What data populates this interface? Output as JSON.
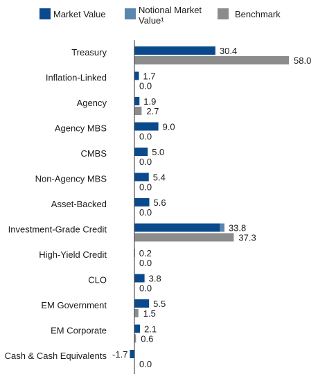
{
  "chart_data": {
    "type": "bar",
    "orientation": "horizontal",
    "categories": [
      "Treasury",
      "Inflation-Linked",
      "Agency",
      "Agency MBS",
      "CMBS",
      "Non-Agency MBS",
      "Asset-Backed",
      "Investment-Grade Credit",
      "High-Yield Credit",
      "CLO",
      "EM Government",
      "EM Corporate",
      "Cash & Cash Equivalents"
    ],
    "legend": {
      "placement": "top",
      "items": [
        {
          "key": "market",
          "lines": [
            "Market Value"
          ]
        },
        {
          "key": "notional",
          "lines": [
            "Notional Market",
            "Value¹"
          ]
        },
        {
          "key": "benchmark",
          "lines": [
            "Benchmark"
          ]
        }
      ]
    },
    "series": [
      {
        "name": "Market Value",
        "key": "market",
        "color": "#0a4a8c",
        "values": [
          30.4,
          1.7,
          1.9,
          9.0,
          5.0,
          5.4,
          5.6,
          32.1,
          0.2,
          3.8,
          5.5,
          2.1,
          -1.7
        ]
      },
      {
        "name": "Notional Market Value¹",
        "key": "notional",
        "color": "#5b86ad",
        "values": [
          0,
          0,
          0,
          0,
          0,
          0,
          0,
          1.7,
          0,
          0,
          0,
          0,
          0
        ]
      },
      {
        "name": "Benchmark",
        "key": "benchmark",
        "color": "#8c8c8c",
        "values": [
          58.0,
          0.0,
          2.7,
          0.0,
          0.0,
          0.0,
          0.0,
          37.3,
          0.0,
          0.0,
          1.5,
          0.6,
          0.0
        ]
      }
    ],
    "data_labels": {
      "primary": [
        "30.4",
        "1.7",
        "1.9",
        "9.0",
        "5.0",
        "5.4",
        "5.6",
        "33.8",
        "0.2",
        "3.8",
        "5.5",
        "2.1",
        "-1.7"
      ],
      "benchmark": [
        "58.0",
        "0.0",
        "2.7",
        "0.0",
        "0.0",
        "0.0",
        "0.0",
        "37.3",
        "0.0",
        "0.0",
        "1.5",
        "0.6",
        "0.0"
      ]
    },
    "xlim": [
      -1.7,
      58.0
    ],
    "grid": false
  }
}
